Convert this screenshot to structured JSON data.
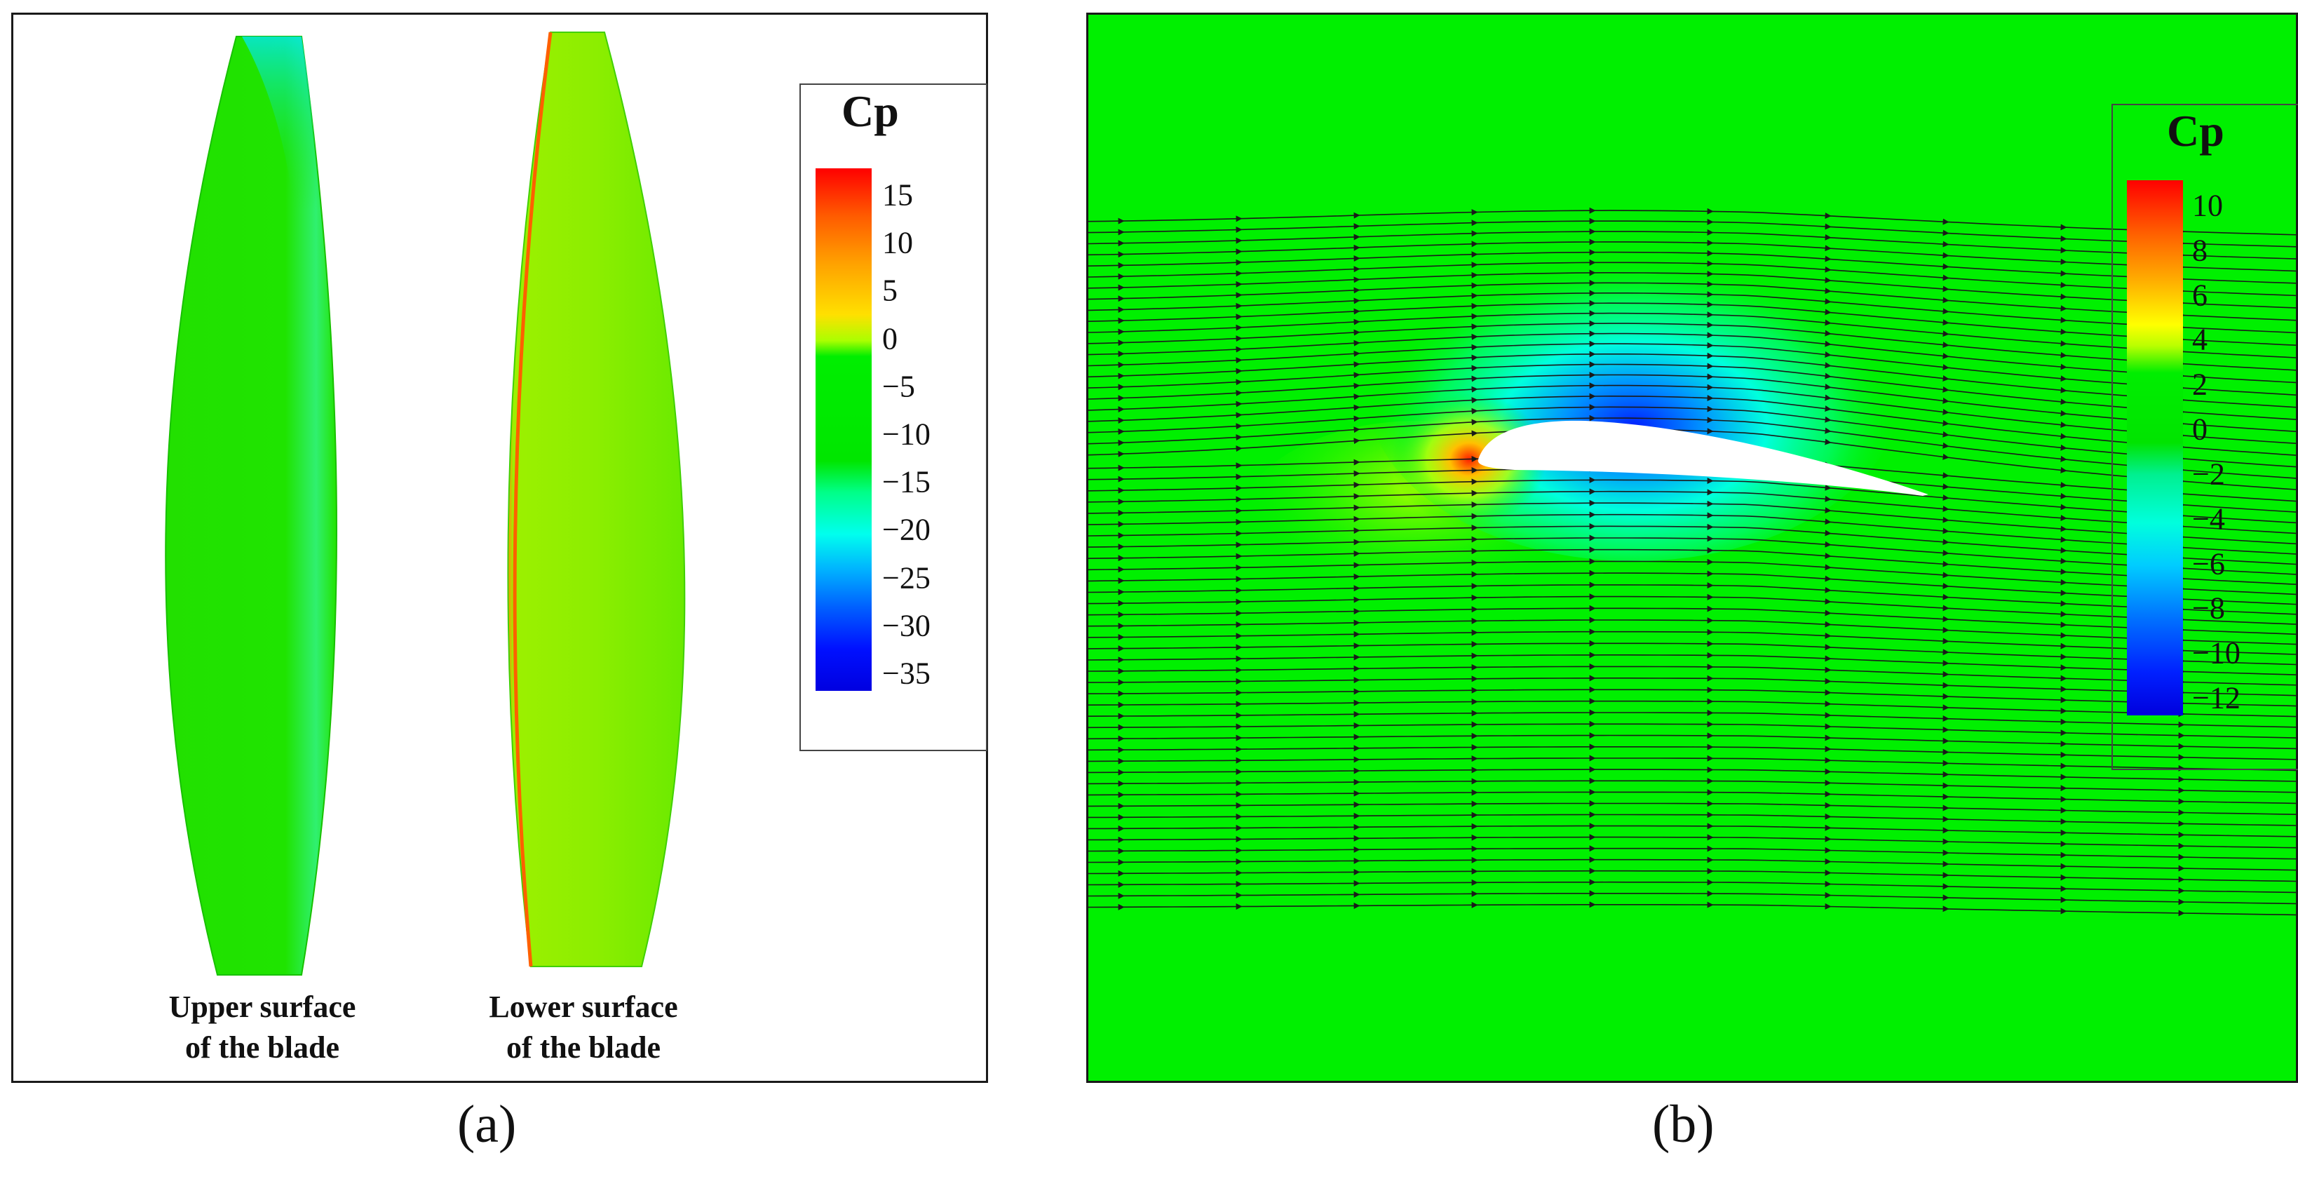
{
  "panel_a": {
    "label": "(a)",
    "blades": [
      {
        "caption_line1": "Upper surface",
        "caption_line2": "of the blade"
      },
      {
        "caption_line1": "Lower surface",
        "caption_line2": "of the blade"
      }
    ],
    "legend": {
      "title": "Cp",
      "ticks": [
        "15",
        "10",
        "5",
        "0",
        "−5",
        "−10",
        "−15",
        "−20",
        "−25",
        "−30",
        "−35"
      ]
    }
  },
  "panel_b": {
    "label": "(b)",
    "legend": {
      "title": "Cp",
      "ticks": [
        "10",
        "8",
        "6",
        "4",
        "2",
        "0",
        "−2",
        "−4",
        "−6",
        "−8",
        "−10",
        "−12"
      ]
    }
  },
  "colors": {
    "field_green": "#00f000",
    "streamline": "#1a1a1a"
  }
}
